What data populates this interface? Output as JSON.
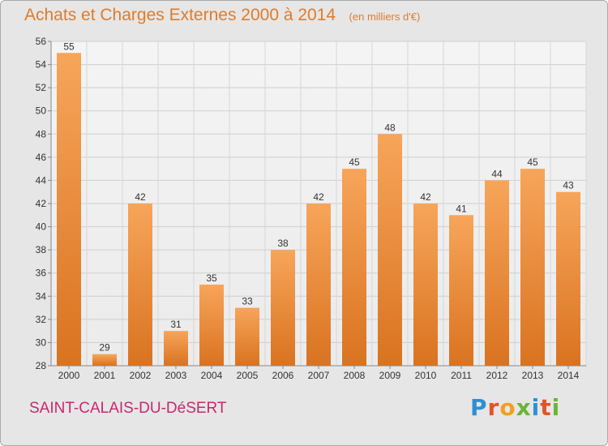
{
  "header": {
    "title": "Achats et Charges Externes 2000 à 2014",
    "unit": "(en milliers d'€)"
  },
  "commune": "SAINT-CALAIS-DU-DéSERT",
  "logo": {
    "text": "Proxiti",
    "letters": [
      {
        "char": "P",
        "color": "#2f8fd1"
      },
      {
        "char": "r",
        "color": "#e0542a"
      },
      {
        "char": "o",
        "color": "#f0a020"
      },
      {
        "char": "x",
        "color": "#6bb536"
      },
      {
        "char": "i",
        "color": "#2f8fd1"
      },
      {
        "char": "t",
        "color": "#e0542a"
      },
      {
        "char": "i",
        "color": "#6bb536"
      }
    ]
  },
  "chart_data": {
    "type": "bar",
    "categories": [
      "2000",
      "2001",
      "2002",
      "2003",
      "2004",
      "2005",
      "2006",
      "2007",
      "2008",
      "2009",
      "2010",
      "2011",
      "2012",
      "2013",
      "2014"
    ],
    "values": [
      55,
      29,
      42,
      31,
      35,
      33,
      38,
      42,
      45,
      48,
      42,
      41,
      44,
      45,
      43
    ],
    "ylim": [
      28,
      56
    ],
    "yticks": [
      28,
      30,
      32,
      34,
      36,
      38,
      40,
      42,
      44,
      46,
      48,
      50,
      52,
      54,
      56
    ],
    "grid": true,
    "bar_color_top": "#f7a55a",
    "bar_color_bottom": "#d97320",
    "data_labels": true
  }
}
